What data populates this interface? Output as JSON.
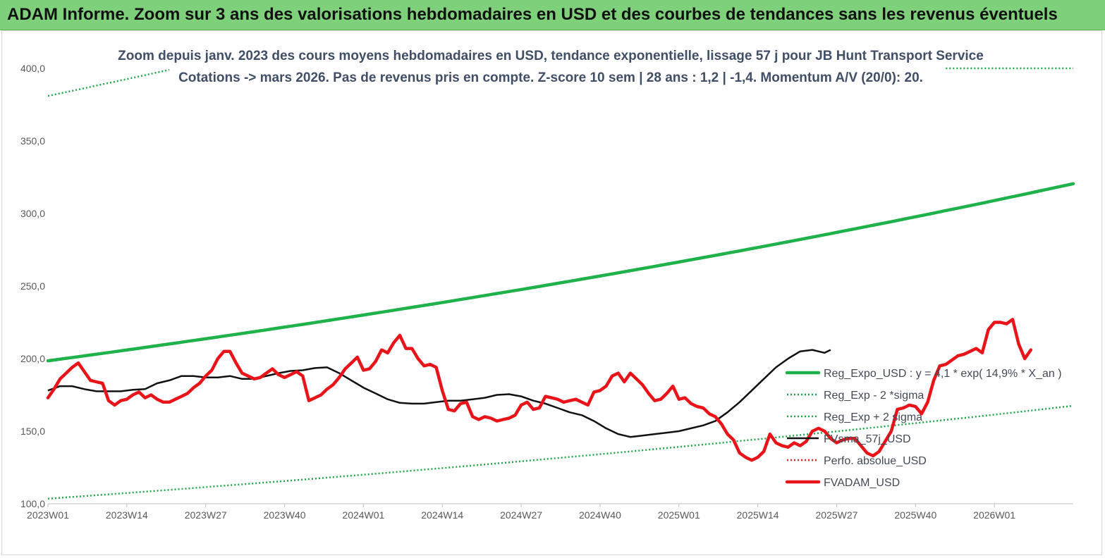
{
  "banner": {
    "title": "ADAM Informe. Zoom sur 3 ans des valorisations hebdomadaires en USD et des courbes de tendances sans les revenus éventuels"
  },
  "colors": {
    "banner_bg": "#7ed17a",
    "reg_expo": "#1fb14a",
    "sigma_dotted": "#22a54a",
    "perfo_dotted": "#d62020",
    "fvadam": "#e8141a",
    "fvsma": "#111111"
  },
  "chart_data": {
    "type": "line",
    "title": "Zoom depuis janv. 2023 des cours moyens hebdomadaires en USD, tendance exponentielle, lissage 57 j pour JB Hunt Transport Service",
    "subtitle": "Cotations -> mars 2026. Pas de revenus pris en compte. Z-score 10 sem | 28 ans : 1,2 | -1,4. Momentum A/V (20/0): 20.",
    "x_ticks": [
      "2023W01",
      "2023W14",
      "2023W27",
      "2023W40",
      "2024W01",
      "2024W14",
      "2024W27",
      "2024W40",
      "2025W01",
      "2025W14",
      "2025W27",
      "2025W40",
      "2026W01"
    ],
    "y_ticks": [
      "100,0",
      "150,0",
      "200,0",
      "250,0",
      "300,0",
      "350,0",
      "400,0"
    ],
    "ylim": [
      100,
      400
    ],
    "week_count": 170,
    "grid": false,
    "legend_position": "right",
    "series": [
      {
        "name": "Reg_Expo_USD : y = 4,1 * exp( 14,9% *  X_an )",
        "style": "solid-thick",
        "color": "#1fb14a",
        "points": [
          [
            0,
            198.5
          ],
          [
            169,
            320.5
          ]
        ],
        "curve": "exp"
      },
      {
        "name": "Reg_Exp - 2 *sigma",
        "style": "dotted",
        "color": "#22a54a",
        "points": [
          [
            0,
            103.5
          ],
          [
            169,
            167.5
          ]
        ],
        "curve": "exp"
      },
      {
        "name": "Reg_Exp + 2 sigma",
        "style": "dotted",
        "color": "#22a54a",
        "points": [
          [
            0,
            381
          ],
          [
            20,
            399
          ]
        ],
        "curve": "exp",
        "clip_max": 400,
        "extra_segment": [
          [
            148,
            400
          ],
          [
            169,
            400
          ]
        ]
      },
      {
        "name": "FVsma_57j_USD",
        "style": "solid",
        "color": "#111111",
        "points": [
          [
            0,
            178
          ],
          [
            4,
            181
          ],
          [
            8,
            181
          ],
          [
            12,
            179
          ],
          [
            16,
            177.5
          ],
          [
            20,
            177.5
          ],
          [
            24,
            177.5
          ],
          [
            28,
            178.5
          ],
          [
            32,
            179
          ],
          [
            36,
            183
          ],
          [
            40,
            185
          ],
          [
            44,
            188
          ],
          [
            48,
            188
          ],
          [
            52,
            187
          ],
          [
            56,
            187
          ],
          [
            60,
            188
          ],
          [
            64,
            186
          ],
          [
            68,
            186
          ],
          [
            72,
            188
          ],
          [
            76,
            190
          ],
          [
            80,
            191.5
          ],
          [
            84,
            192
          ],
          [
            88,
            193.5
          ],
          [
            92,
            194
          ],
          [
            96,
            190
          ],
          [
            100,
            185
          ],
          [
            104,
            180
          ],
          [
            108,
            176
          ],
          [
            112,
            172
          ],
          [
            116,
            169.5
          ],
          [
            120,
            169
          ],
          [
            124,
            169
          ],
          [
            128,
            170
          ],
          [
            132,
            171
          ],
          [
            136,
            171
          ],
          [
            140,
            172
          ],
          [
            144,
            173
          ],
          [
            148,
            175
          ],
          [
            152,
            175.5
          ],
          [
            156,
            174
          ],
          [
            160,
            171
          ],
          [
            164,
            169
          ],
          [
            168,
            166
          ],
          [
            172,
            163
          ],
          [
            176,
            161
          ],
          [
            180,
            157
          ],
          [
            184,
            152
          ],
          [
            188,
            148
          ],
          [
            192,
            146
          ],
          [
            196,
            147
          ],
          [
            200,
            148
          ],
          [
            204,
            149
          ],
          [
            208,
            150
          ],
          [
            212,
            152
          ],
          [
            216,
            154
          ],
          [
            220,
            157
          ],
          [
            224,
            163
          ],
          [
            228,
            170
          ],
          [
            232,
            178
          ],
          [
            236,
            186
          ],
          [
            240,
            194
          ],
          [
            244,
            200
          ],
          [
            248,
            205
          ],
          [
            252,
            206
          ],
          [
            256,
            204
          ],
          [
            258,
            206
          ]
        ],
        "x_unit_note": "half-weeks"
      },
      {
        "name": "Perfo. absolue_USD",
        "style": "dotted",
        "color": "#d62020",
        "points": []
      },
      {
        "name": "FVADAM_USD",
        "style": "solid-thick",
        "color": "#e8141a",
        "points": [
          [
            0,
            173
          ],
          [
            2,
            179
          ],
          [
            4,
            186
          ],
          [
            6,
            190
          ],
          [
            8,
            194
          ],
          [
            10,
            197
          ],
          [
            12,
            191
          ],
          [
            14,
            185
          ],
          [
            16,
            184
          ],
          [
            18,
            183
          ],
          [
            20,
            171
          ],
          [
            22,
            168
          ],
          [
            24,
            171
          ],
          [
            26,
            172
          ],
          [
            28,
            175
          ],
          [
            30,
            177
          ],
          [
            32,
            173
          ],
          [
            34,
            175
          ],
          [
            36,
            172
          ],
          [
            38,
            170
          ],
          [
            40,
            170
          ],
          [
            42,
            172
          ],
          [
            44,
            174
          ],
          [
            46,
            176
          ],
          [
            48,
            180
          ],
          [
            50,
            183
          ],
          [
            52,
            188
          ],
          [
            54,
            192
          ],
          [
            56,
            200
          ],
          [
            58,
            205
          ],
          [
            60,
            205
          ],
          [
            62,
            197
          ],
          [
            64,
            190
          ],
          [
            66,
            188
          ],
          [
            68,
            186
          ],
          [
            70,
            187
          ],
          [
            72,
            190
          ],
          [
            74,
            193
          ],
          [
            76,
            189
          ],
          [
            78,
            187
          ],
          [
            80,
            189
          ],
          [
            82,
            191
          ],
          [
            84,
            188
          ],
          [
            86,
            171
          ],
          [
            88,
            173
          ],
          [
            90,
            175
          ],
          [
            92,
            179
          ],
          [
            94,
            182
          ],
          [
            96,
            187
          ],
          [
            98,
            193
          ],
          [
            100,
            197
          ],
          [
            102,
            201
          ],
          [
            104,
            192
          ],
          [
            106,
            193
          ],
          [
            108,
            198
          ],
          [
            110,
            206
          ],
          [
            112,
            204
          ],
          [
            114,
            211
          ],
          [
            116,
            216
          ],
          [
            118,
            207
          ],
          [
            120,
            207
          ],
          [
            122,
            200
          ],
          [
            124,
            195
          ],
          [
            126,
            196
          ],
          [
            128,
            194
          ],
          [
            130,
            178
          ],
          [
            132,
            165
          ],
          [
            134,
            164
          ],
          [
            136,
            169
          ],
          [
            138,
            170
          ],
          [
            140,
            160
          ],
          [
            142,
            158
          ],
          [
            144,
            160
          ],
          [
            146,
            159
          ],
          [
            148,
            157
          ],
          [
            150,
            158
          ],
          [
            152,
            159
          ],
          [
            154,
            161
          ],
          [
            156,
            168
          ],
          [
            158,
            170
          ],
          [
            160,
            165
          ],
          [
            162,
            166
          ],
          [
            164,
            174
          ],
          [
            166,
            173
          ],
          [
            168,
            172
          ],
          [
            170,
            170
          ],
          [
            172,
            171
          ],
          [
            174,
            172
          ],
          [
            176,
            170
          ],
          [
            178,
            168
          ],
          [
            180,
            177
          ],
          [
            182,
            178
          ],
          [
            184,
            181
          ],
          [
            186,
            188
          ],
          [
            188,
            190
          ],
          [
            190,
            184
          ],
          [
            192,
            190
          ],
          [
            194,
            186
          ],
          [
            196,
            182
          ],
          [
            198,
            176
          ],
          [
            200,
            171
          ],
          [
            202,
            172
          ],
          [
            204,
            176
          ],
          [
            206,
            181
          ],
          [
            208,
            172
          ],
          [
            210,
            173
          ],
          [
            212,
            169
          ],
          [
            214,
            167
          ],
          [
            216,
            166
          ],
          [
            218,
            162
          ],
          [
            220,
            160
          ],
          [
            222,
            155
          ],
          [
            224,
            148
          ],
          [
            226,
            144
          ],
          [
            228,
            135
          ],
          [
            230,
            132
          ],
          [
            232,
            130
          ],
          [
            234,
            132
          ],
          [
            236,
            136
          ],
          [
            238,
            148
          ],
          [
            240,
            142
          ],
          [
            242,
            140
          ],
          [
            244,
            139
          ],
          [
            246,
            142
          ],
          [
            248,
            140
          ],
          [
            250,
            143
          ],
          [
            252,
            150
          ],
          [
            254,
            152
          ],
          [
            256,
            150
          ],
          [
            258,
            145
          ],
          [
            260,
            142
          ],
          [
            262,
            144
          ],
          [
            264,
            145
          ],
          [
            266,
            145
          ],
          [
            268,
            140
          ],
          [
            270,
            135
          ],
          [
            272,
            133
          ],
          [
            274,
            136
          ],
          [
            276,
            143
          ],
          [
            278,
            150
          ],
          [
            280,
            165
          ],
          [
            282,
            166
          ],
          [
            284,
            168
          ],
          [
            286,
            167
          ],
          [
            288,
            162
          ],
          [
            290,
            170
          ],
          [
            292,
            185
          ],
          [
            294,
            195
          ],
          [
            296,
            196
          ],
          [
            298,
            199
          ],
          [
            300,
            202
          ],
          [
            302,
            203
          ],
          [
            304,
            205
          ],
          [
            306,
            207
          ],
          [
            308,
            204
          ],
          [
            310,
            220
          ],
          [
            312,
            225
          ],
          [
            314,
            225
          ],
          [
            316,
            224
          ],
          [
            318,
            227
          ],
          [
            320,
            210
          ],
          [
            322,
            200
          ],
          [
            324,
            206
          ]
        ],
        "x_unit_note": "half-weeks"
      }
    ]
  }
}
